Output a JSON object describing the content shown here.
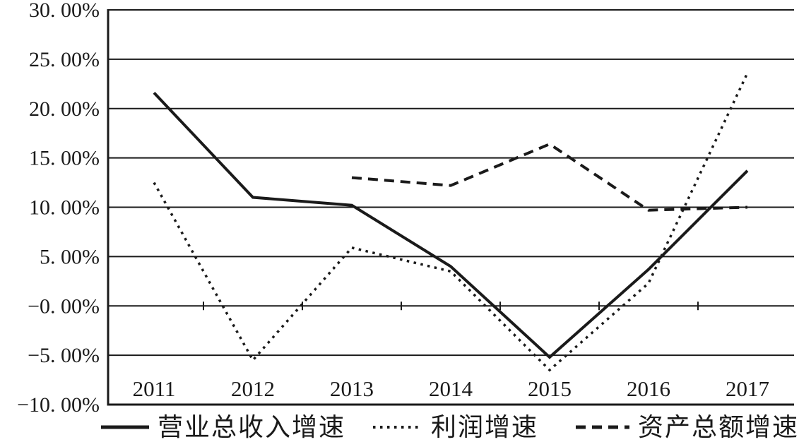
{
  "chart_data": {
    "type": "line",
    "categories": [
      "2011",
      "2012",
      "2013",
      "2014",
      "2015",
      "2016",
      "2017"
    ],
    "series": [
      {
        "name": "营业总收入增速",
        "style": "solid",
        "values": [
          21.6,
          11.0,
          10.2,
          4.0,
          -5.2,
          3.7,
          13.7
        ]
      },
      {
        "name": "利润增速",
        "style": "dotted",
        "values": [
          12.5,
          -5.5,
          5.9,
          3.5,
          -6.5,
          2.3,
          23.6
        ]
      },
      {
        "name": "资产总额增速",
        "style": "dashed",
        "values": [
          null,
          null,
          13.0,
          12.2,
          16.4,
          9.7,
          10.0
        ]
      }
    ],
    "title": "",
    "xlabel": "",
    "ylabel": "",
    "ylim": [
      -10,
      30
    ],
    "y_tick_step": 5,
    "y_tick_labels": [
      "30. 00%",
      "25. 00%",
      "20. 00%",
      "15. 00%",
      "10. 00%",
      "5. 00%",
      "−0. 00%",
      "−5. 00%",
      "−10. 00%"
    ],
    "grid": true,
    "legend_position": "bottom"
  },
  "legend": {
    "items": [
      {
        "label": "营业总收入增速",
        "style": "solid"
      },
      {
        "label": "利润增速",
        "style": "dotted"
      },
      {
        "label": "资产总额增速",
        "style": "dashed"
      }
    ]
  },
  "colors": {
    "line": "#1a1a1a",
    "background": "#ffffff"
  }
}
